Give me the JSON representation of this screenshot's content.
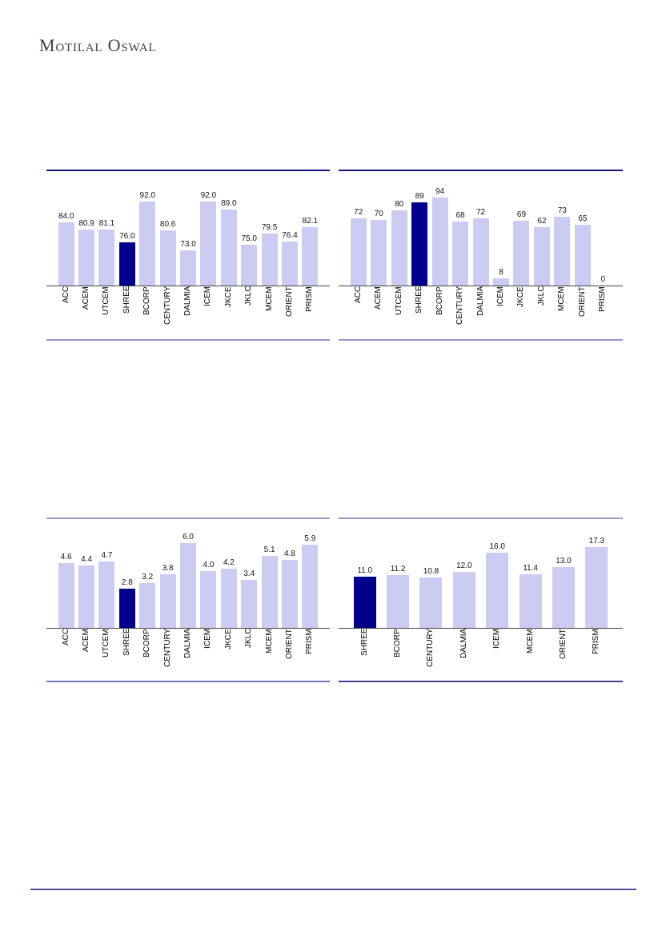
{
  "page": {
    "brand": "Motilal Oswal",
    "background": "#ffffff"
  },
  "colors": {
    "bar_light": "#ccccf2",
    "bar_highlight": "#00008b",
    "top_rule_navy": "#16167e",
    "top_rule_lilac": "#9e9ac8",
    "separator_lilac": "#9a96cf",
    "separator_purple": "#7b74b8",
    "separator_dark_purple": "#433e92",
    "axis_line": "#404040",
    "footer_rule": "#554fa0"
  },
  "chart_data": [
    {
      "type": "bar",
      "categories": [
        "ACC",
        "ACEM",
        "UTCEM",
        "SHREE",
        "BCORP",
        "CENTURY",
        "DALMIA",
        "ICEM",
        "JKCE",
        "JKLC",
        "MCEM",
        "ORIENT",
        "PRISM"
      ],
      "values": [
        84.0,
        80.9,
        81.1,
        76.0,
        92.0,
        80.6,
        73.0,
        92.0,
        89.0,
        75.0,
        79.5,
        76.4,
        82.1
      ],
      "value_labels": [
        "84.0",
        "80.9",
        "81.1",
        "76.0",
        "92.0",
        "80.6",
        "73.0",
        "92.0",
        "89.0",
        "75.0",
        "79.5",
        "76.4",
        "82.1"
      ],
      "highlight_category": "SHREE",
      "highlight_index": 3,
      "title": "",
      "xlabel": "",
      "ylabel": "",
      "ylim": [
        59,
        104
      ],
      "grid": false,
      "legend": "none",
      "y_axis_visible": false,
      "bar_color": "#ccccf2",
      "highlight_color": "#00008b",
      "top_rule_color": "#16167e",
      "bottom_rule_color": "#9a96cf"
    },
    {
      "type": "bar",
      "categories": [
        "ACC",
        "ACEM",
        "UTCEM",
        "SHREE",
        "BCORP",
        "CENTURY",
        "DALMIA",
        "ICEM",
        "JKCE",
        "JKLC",
        "MCEM",
        "ORIENT",
        "PRISM"
      ],
      "values": [
        72,
        70,
        80,
        89,
        94,
        68,
        72,
        8,
        69,
        62,
        73,
        65,
        0
      ],
      "value_labels": [
        "72",
        "70",
        "80",
        "89",
        "94",
        "68",
        "72",
        "8",
        "69",
        "62",
        "73",
        "65",
        "0"
      ],
      "highlight_category": "SHREE",
      "highlight_index": 3,
      "title": "",
      "xlabel": "",
      "ylabel": "",
      "ylim": [
        0,
        122
      ],
      "grid": false,
      "legend": "none",
      "y_axis_visible": false,
      "bar_color": "#ccccf2",
      "highlight_color": "#00008b",
      "top_rule_color": "#16167e",
      "bottom_rule_color": "#9a96cf"
    },
    {
      "type": "bar",
      "categories": [
        "ACC",
        "ACEM",
        "UTCEM",
        "SHREE",
        "BCORP",
        "CENTURY",
        "DALMIA",
        "ICEM",
        "JKCE",
        "JKLC",
        "MCEM",
        "ORIENT",
        "PRISM"
      ],
      "values": [
        4.6,
        4.4,
        4.7,
        2.8,
        3.2,
        3.8,
        6.0,
        4.0,
        4.2,
        3.4,
        5.1,
        4.8,
        5.9
      ],
      "value_labels": [
        "4.6",
        "4.4",
        "4.7",
        "2.8",
        "3.2",
        "3.8",
        "6.0",
        "4.0",
        "4.2",
        "3.4",
        "5.1",
        "4.8",
        "5.9"
      ],
      "highlight_category": "SHREE",
      "highlight_index": 3,
      "title": "",
      "xlabel": "",
      "ylabel": "",
      "ylim": [
        0,
        7.7
      ],
      "grid": false,
      "legend": "none",
      "y_axis_visible": false,
      "bar_color": "#ccccf2",
      "highlight_color": "#00008b",
      "top_rule_color": "#9e9ac8",
      "bottom_rule_color": "#7b74b8"
    },
    {
      "type": "bar",
      "categories": [
        "SHREE",
        "BCORP",
        "CENTURY",
        "DALMIA",
        "ICEM",
        "MCEM",
        "ORIENT",
        "PRISM"
      ],
      "values": [
        11.0,
        11.2,
        10.8,
        12.0,
        16.0,
        11.4,
        13.0,
        17.3
      ],
      "value_labels": [
        "11.0",
        "11.2",
        "10.8",
        "12.0",
        "16.0",
        "11.4",
        "13.0",
        "17.3"
      ],
      "highlight_category": "SHREE",
      "highlight_index": 0,
      "title": "",
      "xlabel": "",
      "ylabel": "",
      "ylim": [
        0,
        23.2
      ],
      "grid": false,
      "legend": "none",
      "y_axis_visible": false,
      "bar_color": "#ccccf2",
      "highlight_color": "#00008b",
      "top_rule_color": "#9e9ac8",
      "bottom_rule_color": "#433e92"
    }
  ]
}
